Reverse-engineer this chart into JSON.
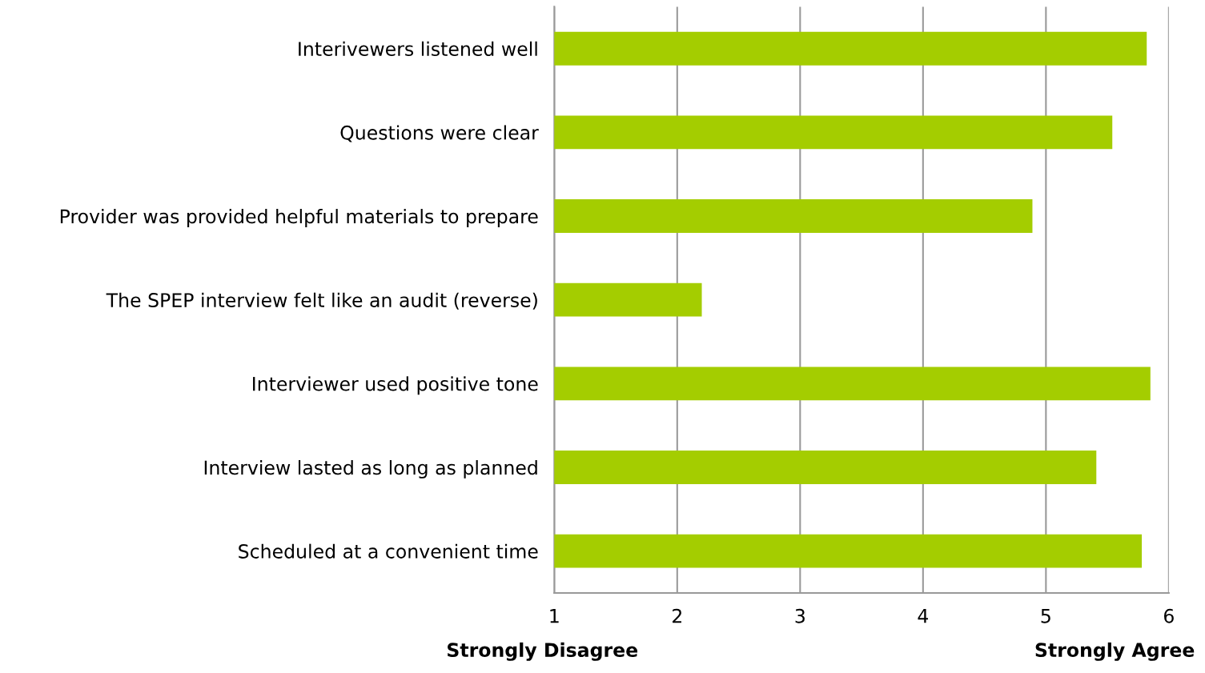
{
  "chart_data": {
    "type": "bar",
    "orientation": "horizontal",
    "categories": [
      "Interivewers listened well",
      "Questions were clear",
      "Provider was provided helpful materials to prepare",
      "The SPEP interview felt like an audit (reverse)",
      "Interviewer used positive tone",
      "Interview lasted as long as planned",
      "Scheduled at a convenient time"
    ],
    "values": [
      5.82,
      5.54,
      4.89,
      2.2,
      5.85,
      5.41,
      5.78
    ],
    "color": "#a4cd00",
    "xlim": [
      1,
      6
    ],
    "xticks": [
      1,
      2,
      3,
      4,
      5,
      6
    ],
    "grid": "x",
    "annotations": [
      "Strongly Disagree",
      "Strongly Agree"
    ]
  }
}
